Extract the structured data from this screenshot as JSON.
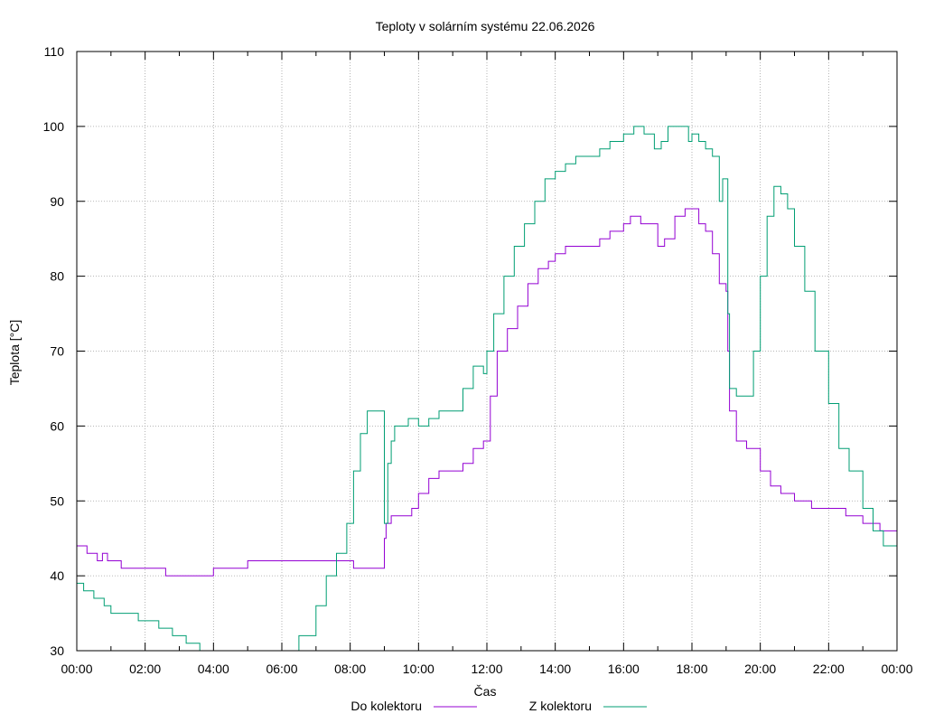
{
  "chart_data": {
    "type": "line",
    "title": "Teploty v solárním systému 22.06.2026",
    "xlabel": "Čas",
    "ylabel": "Teplota [°C]",
    "xlim": [
      0,
      24
    ],
    "ylim": [
      30,
      110
    ],
    "grid": true,
    "legend_position": "bottom-center",
    "x_tick_labels": [
      "00:00",
      "02:00",
      "04:00",
      "06:00",
      "08:00",
      "10:00",
      "12:00",
      "14:00",
      "16:00",
      "18:00",
      "20:00",
      "22:00",
      "00:00"
    ],
    "y_tick_labels": [
      "30",
      "40",
      "50",
      "60",
      "70",
      "80",
      "90",
      "100",
      "110"
    ],
    "x_ticks": [
      0,
      2,
      4,
      6,
      8,
      10,
      12,
      14,
      16,
      18,
      20,
      22,
      24
    ],
    "y_ticks": [
      30,
      40,
      50,
      60,
      70,
      80,
      90,
      100,
      110
    ],
    "series": [
      {
        "name": "Do kolektoru",
        "color": "#9400d3",
        "x": [
          0,
          0.15,
          0.3,
          0.5,
          0.6,
          0.75,
          0.9,
          1.0,
          1.2,
          1.3,
          1.5,
          2.0,
          2.5,
          2.6,
          3.0,
          3.5,
          3.8,
          4.0,
          4.5,
          4.8,
          5.0,
          5.5,
          6.0,
          6.5,
          7.0,
          7.5,
          8.0,
          8.1,
          8.5,
          8.9,
          9.0,
          9.05,
          9.2,
          9.5,
          9.8,
          10.0,
          10.3,
          10.6,
          11.0,
          11.3,
          11.6,
          11.9,
          12.0,
          12.1,
          12.3,
          12.6,
          12.9,
          13.2,
          13.5,
          13.8,
          14.0,
          14.3,
          14.6,
          15.0,
          15.3,
          15.6,
          16.0,
          16.2,
          16.5,
          16.8,
          17.0,
          17.2,
          17.5,
          17.8,
          18.0,
          18.2,
          18.4,
          18.6,
          18.8,
          19.0,
          19.05,
          19.1,
          19.3,
          19.6,
          20.0,
          20.3,
          20.6,
          21.0,
          21.5,
          22.0,
          22.5,
          23.0,
          23.5,
          24.0
        ],
        "y": [
          44,
          44,
          43,
          43,
          42,
          43,
          42,
          42,
          42,
          41,
          41,
          41,
          41,
          40,
          40,
          40,
          40,
          41,
          41,
          41,
          42,
          42,
          42,
          42,
          42,
          42,
          42,
          41,
          41,
          41,
          45,
          47,
          48,
          48,
          49,
          51,
          53,
          54,
          54,
          55,
          57,
          58,
          58,
          64,
          70,
          73,
          76,
          79,
          81,
          82,
          83,
          84,
          84,
          84,
          85,
          86,
          87,
          88,
          87,
          87,
          84,
          85,
          88,
          89,
          89,
          87,
          86,
          83,
          79,
          78,
          70,
          62,
          58,
          57,
          54,
          52,
          51,
          50,
          49,
          49,
          48,
          47,
          46,
          45
        ]
      },
      {
        "name": "Z kolektoru",
        "color": "#009e73",
        "x": [
          0,
          0.2,
          0.5,
          0.8,
          1.0,
          1.4,
          1.8,
          2.0,
          2.4,
          2.8,
          3.2,
          3.5,
          3.6,
          4.0,
          5.0,
          6.0,
          6.2,
          6.5,
          7.0,
          7.3,
          7.6,
          7.9,
          8.1,
          8.3,
          8.5,
          8.7,
          8.9,
          9.0,
          9.1,
          9.2,
          9.3,
          9.5,
          9.7,
          10.0,
          10.3,
          10.6,
          11.0,
          11.3,
          11.6,
          11.9,
          12.0,
          12.2,
          12.5,
          12.8,
          13.1,
          13.4,
          13.7,
          14.0,
          14.3,
          14.6,
          15.0,
          15.3,
          15.6,
          16.0,
          16.3,
          16.6,
          16.9,
          17.1,
          17.3,
          17.6,
          17.9,
          18.0,
          18.2,
          18.4,
          18.6,
          18.8,
          18.9,
          19.0,
          19.05,
          19.1,
          19.3,
          19.5,
          19.8,
          20.0,
          20.2,
          20.4,
          20.6,
          20.8,
          21.0,
          21.3,
          21.6,
          22.0,
          22.3,
          22.6,
          23.0,
          23.3,
          23.6,
          24.0
        ],
        "y": [
          39,
          38,
          37,
          36,
          35,
          35,
          34,
          34,
          33,
          32,
          31,
          31,
          30,
          29,
          28,
          29,
          30,
          32,
          36,
          40,
          43,
          47,
          54,
          59,
          62,
          62,
          62,
          47,
          55,
          58,
          60,
          60,
          61,
          60,
          61,
          62,
          62,
          65,
          68,
          67,
          70,
          75,
          80,
          84,
          87,
          90,
          93,
          94,
          95,
          96,
          96,
          97,
          98,
          99,
          100,
          99,
          97,
          98,
          100,
          100,
          98,
          99,
          98,
          97,
          96,
          90,
          93,
          93,
          75,
          65,
          64,
          64,
          70,
          80,
          88,
          92,
          91,
          89,
          84,
          78,
          70,
          63,
          57,
          54,
          49,
          46,
          44,
          42
        ]
      }
    ]
  }
}
